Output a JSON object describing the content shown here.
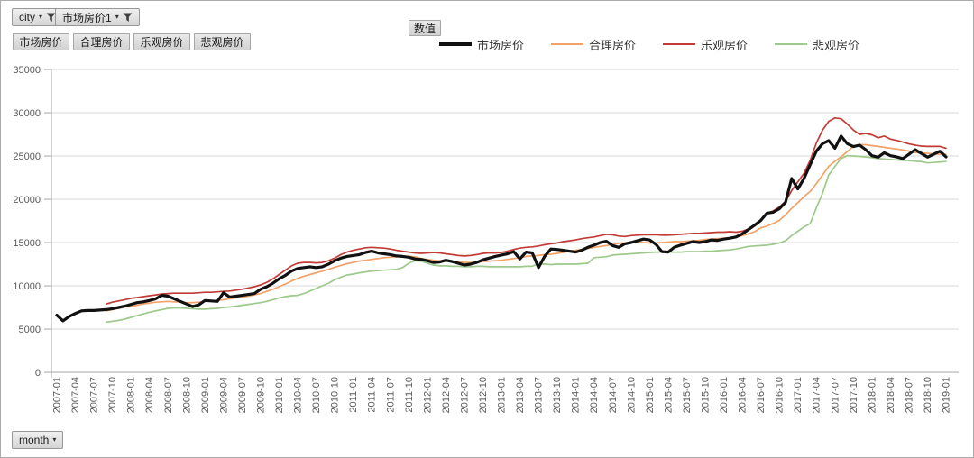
{
  "filters": {
    "city_field": {
      "label": "city"
    },
    "value_field": {
      "label": "市场房价1"
    },
    "series_buttons": [
      "市场房价",
      "合理房价",
      "乐观房价",
      "悲观房价"
    ],
    "values_button": "数值",
    "axis_field": {
      "label": "month"
    }
  },
  "colors": {
    "grid": "#d9d9d9",
    "axis": "#a6a6a6",
    "tick_text": "#595959",
    "market": "#111111",
    "reasonable": "#f2a269",
    "optimistic": "#c23b36",
    "pessimistic": "#9dc98b"
  },
  "chart_data": {
    "type": "line",
    "title": "",
    "xlabel": "",
    "ylabel": "",
    "x_start": "2007-01",
    "x_interval": "month",
    "x_end": "2019-01",
    "ylim": [
      0,
      35000
    ],
    "y_ticks": [
      0,
      5000,
      10000,
      15000,
      20000,
      25000,
      30000,
      35000
    ],
    "grid": true,
    "legend_position": "top",
    "x_tick_labels": [
      "2007-01",
      "2007-04",
      "2007-07",
      "2007-10",
      "2008-01",
      "2008-04",
      "2008-07",
      "2008-10",
      "2009-01",
      "2009-04",
      "2009-07",
      "2009-10",
      "2010-01",
      "2010-04",
      "2010-07",
      "2010-10",
      "2011-01",
      "2011-04",
      "2011-07",
      "2011-10",
      "2012-01",
      "2012-04",
      "2012-07",
      "2012-10",
      "2013-01",
      "2013-04",
      "2013-07",
      "2013-10",
      "2014-01",
      "2014-04",
      "2014-07",
      "2014-10",
      "2015-01",
      "2015-04",
      "2015-07",
      "2015-10",
      "2016-01",
      "2016-04",
      "2016-07",
      "2016-10",
      "2017-01",
      "2017-04",
      "2017-07",
      "2017-10",
      "2018-01",
      "2018-04",
      "2018-07",
      "2018-10",
      "2019-01"
    ],
    "series": [
      {
        "name": "市场房价",
        "color": "#111111",
        "width": 3.2,
        "values": [
          6600,
          5950,
          6450,
          6800,
          7100,
          7150,
          7150,
          7200,
          7250,
          7350,
          7500,
          7650,
          7850,
          8050,
          8150,
          8300,
          8500,
          8900,
          8800,
          8500,
          8200,
          7900,
          7600,
          7800,
          8300,
          8250,
          8200,
          9200,
          8700,
          8800,
          8900,
          9000,
          9100,
          9600,
          9900,
          10300,
          10800,
          11200,
          11700,
          12000,
          12100,
          12200,
          12100,
          12200,
          12500,
          12900,
          13200,
          13400,
          13500,
          13600,
          13850,
          14000,
          13800,
          13700,
          13600,
          13450,
          13400,
          13300,
          13100,
          13050,
          12900,
          12700,
          12750,
          12950,
          12800,
          12600,
          12400,
          12500,
          12700,
          13000,
          13200,
          13400,
          13550,
          13700,
          13950,
          13100,
          13900,
          13800,
          12100,
          13400,
          14250,
          14200,
          14100,
          14000,
          13900,
          14100,
          14450,
          14700,
          15000,
          15150,
          14650,
          14450,
          14850,
          15000,
          15200,
          15400,
          15300,
          14800,
          13950,
          13900,
          14450,
          14700,
          14900,
          15100,
          15000,
          15100,
          15300,
          15250,
          15400,
          15500,
          15650,
          16000,
          16500,
          17000,
          17550,
          18400,
          18500,
          18900,
          19650,
          22400,
          21200,
          22400,
          24000,
          25550,
          26430,
          26770,
          25900,
          27300,
          26430,
          26080,
          26250,
          25730,
          25030,
          24860,
          25380,
          25030,
          24900,
          24690,
          25200,
          25730,
          25300,
          24860,
          25200,
          25550,
          24900
        ]
      },
      {
        "name": "合理房价",
        "color": "#f2a269",
        "width": 1.7,
        "values": [
          null,
          null,
          null,
          null,
          null,
          null,
          null,
          null,
          7100,
          7250,
          7400,
          7550,
          7650,
          7750,
          7900,
          8000,
          8100,
          8150,
          8200,
          8150,
          8100,
          8050,
          8050,
          8100,
          8200,
          8250,
          8300,
          8400,
          8500,
          8600,
          8700,
          8800,
          8950,
          9100,
          9350,
          9600,
          9900,
          10200,
          10550,
          10850,
          11100,
          11300,
          11500,
          11700,
          11900,
          12150,
          12350,
          12550,
          12700,
          12850,
          12950,
          13050,
          13150,
          13250,
          13300,
          13350,
          13400,
          13400,
          13350,
          13150,
          13050,
          12950,
          12900,
          12850,
          12800,
          12750,
          12700,
          12700,
          12750,
          12800,
          12850,
          12900,
          12950,
          13050,
          13150,
          13250,
          13400,
          13450,
          13500,
          13600,
          13650,
          13750,
          13850,
          14000,
          14100,
          14200,
          14300,
          14450,
          14550,
          14650,
          14800,
          14900,
          14950,
          15000,
          15050,
          15000,
          14950,
          14950,
          15000,
          15050,
          15100,
          15100,
          15150,
          15200,
          15250,
          15350,
          15400,
          15450,
          15500,
          15550,
          15650,
          15800,
          16000,
          16250,
          16700,
          16900,
          17200,
          17550,
          18200,
          18950,
          19600,
          20300,
          20900,
          21800,
          22800,
          23800,
          24400,
          24900,
          25500,
          26100,
          26300,
          26300,
          26200,
          26100,
          26000,
          25900,
          25800,
          25700,
          25550,
          25400,
          25350,
          25300,
          25250,
          25200,
          25200
        ]
      },
      {
        "name": "乐观房价",
        "color": "#c23b36",
        "width": 1.7,
        "values": [
          null,
          null,
          null,
          null,
          null,
          null,
          null,
          null,
          7900,
          8100,
          8250,
          8400,
          8550,
          8650,
          8750,
          8850,
          8950,
          9050,
          9100,
          9150,
          9150,
          9150,
          9150,
          9200,
          9250,
          9250,
          9300,
          9350,
          9400,
          9500,
          9600,
          9750,
          9900,
          10100,
          10400,
          10800,
          11300,
          11800,
          12300,
          12600,
          12700,
          12700,
          12650,
          12700,
          12900,
          13200,
          13600,
          13900,
          14100,
          14250,
          14400,
          14450,
          14400,
          14350,
          14250,
          14100,
          14000,
          13900,
          13800,
          13750,
          13800,
          13850,
          13800,
          13700,
          13600,
          13500,
          13450,
          13500,
          13600,
          13750,
          13800,
          13800,
          13850,
          14000,
          14200,
          14350,
          14450,
          14500,
          14600,
          14750,
          14850,
          14950,
          15100,
          15200,
          15300,
          15450,
          15550,
          15650,
          15800,
          15950,
          15900,
          15750,
          15700,
          15800,
          15850,
          15900,
          15900,
          15900,
          15850,
          15850,
          15900,
          15950,
          16000,
          16050,
          16050,
          16100,
          16150,
          16200,
          16200,
          16250,
          16200,
          16300,
          16550,
          17000,
          17450,
          18400,
          18650,
          19100,
          19750,
          21000,
          22000,
          23000,
          24500,
          26500,
          28000,
          29000,
          29400,
          29300,
          28700,
          28000,
          27500,
          27600,
          27450,
          27100,
          27300,
          26950,
          26800,
          26600,
          26400,
          26250,
          26150,
          26100,
          26100,
          26100,
          25900
        ]
      },
      {
        "name": "悲观房价",
        "color": "#9dc98b",
        "width": 1.7,
        "values": [
          null,
          null,
          null,
          null,
          null,
          null,
          null,
          null,
          5800,
          5900,
          6000,
          6150,
          6350,
          6550,
          6750,
          6950,
          7100,
          7250,
          7400,
          7450,
          7450,
          7400,
          7350,
          7300,
          7300,
          7350,
          7400,
          7500,
          7550,
          7650,
          7750,
          7850,
          7950,
          8050,
          8200,
          8400,
          8600,
          8750,
          8850,
          8900,
          9100,
          9400,
          9700,
          10000,
          10300,
          10700,
          11000,
          11250,
          11350,
          11500,
          11600,
          11700,
          11750,
          11800,
          11850,
          11900,
          12100,
          12600,
          12900,
          12850,
          12600,
          12400,
          12300,
          12300,
          12250,
          12250,
          12200,
          12200,
          12250,
          12250,
          12200,
          12200,
          12200,
          12200,
          12200,
          12200,
          12250,
          12250,
          12550,
          12500,
          12450,
          12500,
          12500,
          12500,
          12500,
          12550,
          12600,
          13250,
          13300,
          13350,
          13550,
          13600,
          13650,
          13700,
          13750,
          13800,
          13850,
          13900,
          13900,
          13900,
          13900,
          13900,
          13950,
          13950,
          13950,
          14000,
          14000,
          14050,
          14100,
          14150,
          14250,
          14400,
          14550,
          14600,
          14650,
          14700,
          14800,
          14950,
          15200,
          15800,
          16300,
          16800,
          17200,
          19000,
          20700,
          22800,
          23800,
          24700,
          25030,
          25000,
          24950,
          24900,
          24800,
          24700,
          24650,
          24600,
          24550,
          24500,
          24450,
          24400,
          24350,
          24200,
          24250,
          24300,
          24350
        ]
      }
    ]
  }
}
